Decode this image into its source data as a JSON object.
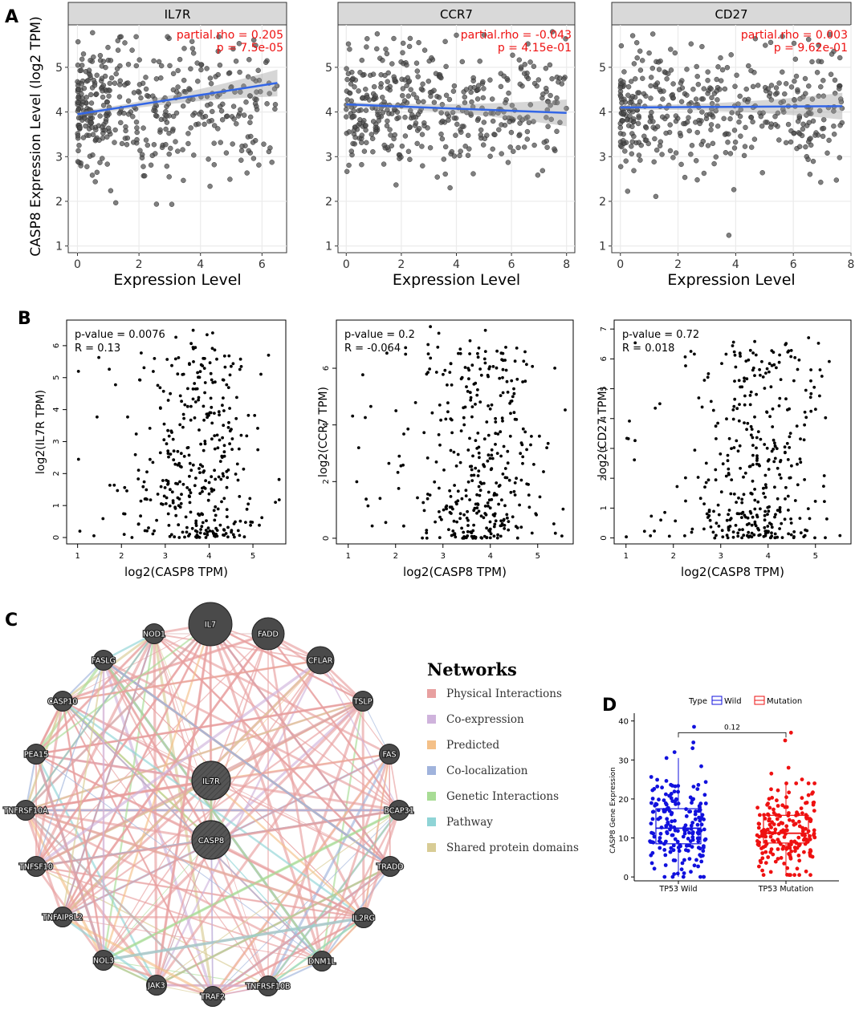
{
  "panel_labels": [
    "A",
    "B",
    "C",
    "D"
  ],
  "colors": {
    "point_gray": "#4d4d4d",
    "fit_blue": "#3366e6",
    "stat_red": "#ee1111",
    "strip_bg": "#d9d9d9",
    "node": "#4a4a4a",
    "wild": "#1111dd",
    "mutation": "#ee1111"
  },
  "panelA": {
    "ylabel": "CASP8 Expression Level (log2 TPM)",
    "xlabel": "Expression Level",
    "plots": [
      {
        "gene": "IL7R",
        "stat_rho": "partial.rho = 0.205",
        "stat_p": "p = 7.5e-05",
        "xlim": [
          -0.3,
          6.8
        ],
        "ylim": [
          0.85,
          5.95
        ],
        "xticks": [
          "0",
          "2",
          "4",
          "6"
        ],
        "xtick_vals": [
          0,
          2,
          4,
          6
        ],
        "yticks": [
          "1",
          "2",
          "3",
          "4",
          "5"
        ],
        "ytick_vals": [
          1,
          2,
          3,
          4,
          5
        ],
        "fit": [
          [
            0,
            3.95
          ],
          [
            6.5,
            4.65
          ]
        ],
        "xmax": 6.5,
        "skew": 0.75
      },
      {
        "gene": "CCR7",
        "stat_rho": "partial.rho = -0.043",
        "stat_p": "p = 4.15e-01",
        "xlim": [
          -0.3,
          8.3
        ],
        "ylim": [
          0.85,
          5.95
        ],
        "xticks": [
          "0",
          "2",
          "4",
          "6",
          "8"
        ],
        "xtick_vals": [
          0,
          2,
          4,
          6,
          8
        ],
        "yticks": [
          "1",
          "2",
          "3",
          "4",
          "5"
        ],
        "ytick_vals": [
          1,
          2,
          3,
          4,
          5
        ],
        "fit": [
          [
            0,
            4.17
          ],
          [
            8,
            3.98
          ]
        ],
        "xmax": 8,
        "skew": 0.35
      },
      {
        "gene": "CD27",
        "stat_rho": "partial.rho = 0.003",
        "stat_p": "p = 9.62e-01",
        "xlim": [
          -0.3,
          8.0
        ],
        "ylim": [
          0.85,
          5.95
        ],
        "xticks": [
          "0",
          "2",
          "4",
          "6",
          "8"
        ],
        "xtick_vals": [
          0,
          2,
          4,
          6,
          8
        ],
        "yticks": [
          "1",
          "2",
          "3",
          "4",
          "5"
        ],
        "ytick_vals": [
          1,
          2,
          3,
          4,
          5
        ],
        "fit": [
          [
            0,
            4.1
          ],
          [
            7.7,
            4.13
          ]
        ],
        "xmax": 7.7,
        "skew": 0.6
      }
    ]
  },
  "panelB": {
    "xlabel": "log2(CASP8 TPM)",
    "plots": [
      {
        "ylabel": "log2(IL7R TPM)",
        "pvalue": "p-value = 0.0076",
        "r": "R = 0.13",
        "xlim": [
          0.75,
          5.75
        ],
        "ylim": [
          -0.2,
          6.8
        ],
        "xticks": [
          "1",
          "2",
          "3",
          "4",
          "5"
        ],
        "xtick_vals": [
          1,
          2,
          3,
          4,
          5
        ],
        "yticks": [
          "0",
          "1",
          "2",
          "3",
          "4",
          "5",
          "6"
        ],
        "ytick_vals": [
          0,
          1,
          2,
          3,
          4,
          5,
          6
        ],
        "ymax": 6.6
      },
      {
        "ylabel": "log2(CCR7 TPM)",
        "pvalue": "p-value = 0.2",
        "r": "R = -0.064",
        "xlim": [
          0.75,
          5.75
        ],
        "ylim": [
          -0.2,
          7.7
        ],
        "xticks": [
          "1",
          "2",
          "3",
          "4",
          "5"
        ],
        "xtick_vals": [
          1,
          2,
          3,
          4,
          5
        ],
        "yticks": [
          "0",
          "2",
          "4",
          "6"
        ],
        "ytick_vals": [
          0,
          2,
          4,
          6
        ],
        "ymax": 7.5
      },
      {
        "ylabel": "log2(CD27 TPM)",
        "pvalue": "p-value = 0.72",
        "r": "R = 0.018",
        "xlim": [
          0.75,
          5.75
        ],
        "ylim": [
          -0.2,
          7.3
        ],
        "xticks": [
          "1",
          "2",
          "3",
          "4",
          "5"
        ],
        "xtick_vals": [
          1,
          2,
          3,
          4,
          5
        ],
        "yticks": [
          "0",
          "1",
          "2",
          "3",
          "4",
          "5",
          "6",
          "7"
        ],
        "ytick_vals": [
          0,
          1,
          2,
          3,
          4,
          5,
          6,
          7
        ],
        "ymax": 7.0
      }
    ]
  },
  "panelC": {
    "legend_title": "Networks",
    "legend": [
      {
        "label": "Physical Interactions",
        "color": "#e8a0a0"
      },
      {
        "label": "Co-expression",
        "color": "#cfb3dc"
      },
      {
        "label": "Predicted",
        "color": "#f4c088"
      },
      {
        "label": "Co-localization",
        "color": "#a0b3dc"
      },
      {
        "label": "Genetic Interactions",
        "color": "#a8dc95"
      },
      {
        "label": "Pathway",
        "color": "#8fd4d6"
      },
      {
        "label": "Shared protein domains",
        "color": "#d8cc95"
      }
    ],
    "center_nodes": [
      "IL7R",
      "CASP8"
    ],
    "ring_nodes": [
      "IL7",
      "FADD",
      "CFLAR",
      "TSLP",
      "FAS",
      "BCAP31",
      "TRADD",
      "IL2RG",
      "DNM1L",
      "TNFRSF10B",
      "TRAF2",
      "JAK3",
      "NOL3",
      "TNFAIP8L2",
      "TNFSF10",
      "TNFRSF10A",
      "PEA15",
      "CASP10",
      "FASLG",
      "NOD1"
    ],
    "ring_sizes": [
      "xl",
      "l",
      "m",
      "s",
      "s",
      "s",
      "s",
      "s",
      "s",
      "s",
      "s",
      "s",
      "s",
      "s",
      "s",
      "s",
      "s",
      "s",
      "s",
      "s"
    ]
  },
  "panelD": {
    "legend_type": "Type",
    "legend_items": [
      "Wild",
      "Mutation"
    ],
    "ylabel": "CASP8 Gene Expression",
    "pvalue": "0.12",
    "ylim": [
      -1,
      42
    ],
    "yticks": [
      "0",
      "10",
      "20",
      "30",
      "40"
    ],
    "ytick_vals": [
      0,
      10,
      20,
      30,
      40
    ],
    "chart_data": {
      "type": "box",
      "categories": [
        "TP53 Wild",
        "TP53 Mutation"
      ],
      "series": [
        {
          "name": "Wild",
          "min": 0,
          "q1": 8.5,
          "median": 12.5,
          "q3": 17.5,
          "max": 30.5,
          "outliers": [
            32,
            33,
            34.5,
            38.5
          ]
        },
        {
          "name": "Mutation",
          "min": 0.5,
          "q1": 8.7,
          "median": 11.2,
          "q3": 15.8,
          "max": 24,
          "outliers": [
            25,
            26.5,
            28,
            35,
            37
          ]
        }
      ]
    }
  }
}
